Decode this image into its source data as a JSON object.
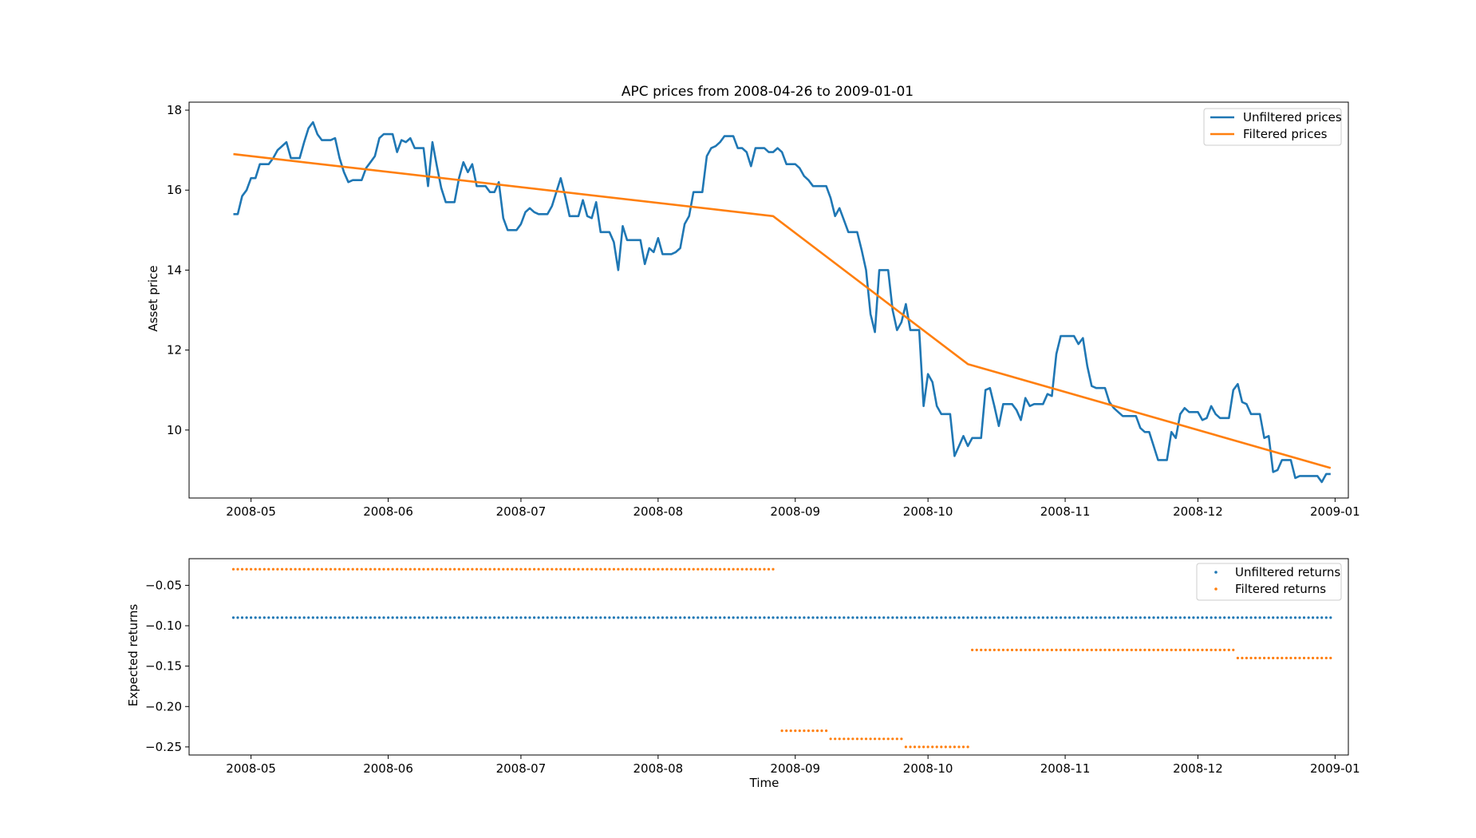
{
  "chart_data": [
    {
      "type": "line",
      "title": "APC prices from 2008-04-26 to 2009-01-01",
      "xlabel": "",
      "ylabel": "Asset price",
      "xlim": [
        "2008-04-17",
        "2009-01-04"
      ],
      "ylim": [
        8.3,
        18.2
      ],
      "yticks": [
        10,
        12,
        14,
        16,
        18
      ],
      "xticks": [
        "2008-05",
        "2008-06",
        "2008-07",
        "2008-08",
        "2008-09",
        "2008-10",
        "2008-11",
        "2008-12",
        "2009-01"
      ],
      "grid": false,
      "legend_position": "upper right",
      "series": [
        {
          "name": "Unfiltered prices",
          "color": "#1f77b4",
          "points": [
            [
              "2008-04-27",
              15.4
            ],
            [
              "2008-04-28",
              15.4
            ],
            [
              "2008-04-29",
              15.85
            ],
            [
              "2008-04-30",
              16.0
            ],
            [
              "2008-05-01",
              16.3
            ],
            [
              "2008-05-02",
              16.3
            ],
            [
              "2008-05-03",
              16.65
            ],
            [
              "2008-05-05",
              16.65
            ],
            [
              "2008-05-06",
              16.8
            ],
            [
              "2008-05-07",
              17.0
            ],
            [
              "2008-05-08",
              17.1
            ],
            [
              "2008-05-09",
              17.2
            ],
            [
              "2008-05-10",
              16.8
            ],
            [
              "2008-05-12",
              16.8
            ],
            [
              "2008-05-13",
              17.2
            ],
            [
              "2008-05-14",
              17.55
            ],
            [
              "2008-05-15",
              17.7
            ],
            [
              "2008-05-16",
              17.4
            ],
            [
              "2008-05-17",
              17.25
            ],
            [
              "2008-05-19",
              17.25
            ],
            [
              "2008-05-20",
              17.3
            ],
            [
              "2008-05-21",
              16.8
            ],
            [
              "2008-05-22",
              16.45
            ],
            [
              "2008-05-23",
              16.2
            ],
            [
              "2008-05-24",
              16.25
            ],
            [
              "2008-05-26",
              16.25
            ],
            [
              "2008-05-27",
              16.55
            ],
            [
              "2008-05-28",
              16.7
            ],
            [
              "2008-05-29",
              16.85
            ],
            [
              "2008-05-30",
              17.3
            ],
            [
              "2008-05-31",
              17.4
            ],
            [
              "2008-06-02",
              17.4
            ],
            [
              "2008-06-03",
              16.95
            ],
            [
              "2008-06-04",
              17.25
            ],
            [
              "2008-06-05",
              17.2
            ],
            [
              "2008-06-06",
              17.3
            ],
            [
              "2008-06-07",
              17.05
            ],
            [
              "2008-06-09",
              17.05
            ],
            [
              "2008-06-10",
              16.1
            ],
            [
              "2008-06-11",
              17.2
            ],
            [
              "2008-06-12",
              16.6
            ],
            [
              "2008-06-13",
              16.05
            ],
            [
              "2008-06-14",
              15.7
            ],
            [
              "2008-06-16",
              15.7
            ],
            [
              "2008-06-17",
              16.3
            ],
            [
              "2008-06-18",
              16.7
            ],
            [
              "2008-06-19",
              16.45
            ],
            [
              "2008-06-20",
              16.65
            ],
            [
              "2008-06-21",
              16.1
            ],
            [
              "2008-06-23",
              16.1
            ],
            [
              "2008-06-24",
              15.95
            ],
            [
              "2008-06-25",
              15.95
            ],
            [
              "2008-06-26",
              16.2
            ],
            [
              "2008-06-27",
              15.3
            ],
            [
              "2008-06-28",
              15.0
            ],
            [
              "2008-06-30",
              15.0
            ],
            [
              "2008-07-01",
              15.15
            ],
            [
              "2008-07-02",
              15.45
            ],
            [
              "2008-07-03",
              15.55
            ],
            [
              "2008-07-04",
              15.45
            ],
            [
              "2008-07-05",
              15.4
            ],
            [
              "2008-07-07",
              15.4
            ],
            [
              "2008-07-08",
              15.6
            ],
            [
              "2008-07-09",
              15.95
            ],
            [
              "2008-07-10",
              16.3
            ],
            [
              "2008-07-11",
              15.85
            ],
            [
              "2008-07-12",
              15.35
            ],
            [
              "2008-07-14",
              15.35
            ],
            [
              "2008-07-15",
              15.75
            ],
            [
              "2008-07-16",
              15.35
            ],
            [
              "2008-07-17",
              15.3
            ],
            [
              "2008-07-18",
              15.7
            ],
            [
              "2008-07-19",
              14.95
            ],
            [
              "2008-07-21",
              14.95
            ],
            [
              "2008-07-22",
              14.7
            ],
            [
              "2008-07-23",
              14.0
            ],
            [
              "2008-07-24",
              15.1
            ],
            [
              "2008-07-25",
              14.75
            ],
            [
              "2008-07-26",
              14.75
            ],
            [
              "2008-07-28",
              14.75
            ],
            [
              "2008-07-29",
              14.15
            ],
            [
              "2008-07-30",
              14.55
            ],
            [
              "2008-07-31",
              14.45
            ],
            [
              "2008-08-01",
              14.8
            ],
            [
              "2008-08-02",
              14.4
            ],
            [
              "2008-08-04",
              14.4
            ],
            [
              "2008-08-05",
              14.45
            ],
            [
              "2008-08-06",
              14.55
            ],
            [
              "2008-08-07",
              15.15
            ],
            [
              "2008-08-08",
              15.35
            ],
            [
              "2008-08-09",
              15.95
            ],
            [
              "2008-08-11",
              15.95
            ],
            [
              "2008-08-12",
              16.85
            ],
            [
              "2008-08-13",
              17.05
            ],
            [
              "2008-08-14",
              17.1
            ],
            [
              "2008-08-15",
              17.2
            ],
            [
              "2008-08-16",
              17.35
            ],
            [
              "2008-08-18",
              17.35
            ],
            [
              "2008-08-19",
              17.05
            ],
            [
              "2008-08-20",
              17.05
            ],
            [
              "2008-08-21",
              16.95
            ],
            [
              "2008-08-22",
              16.6
            ],
            [
              "2008-08-23",
              17.05
            ],
            [
              "2008-08-25",
              17.05
            ],
            [
              "2008-08-26",
              16.95
            ],
            [
              "2008-08-27",
              16.95
            ],
            [
              "2008-08-28",
              17.05
            ],
            [
              "2008-08-29",
              16.95
            ],
            [
              "2008-08-30",
              16.65
            ],
            [
              "2008-09-01",
              16.65
            ],
            [
              "2008-09-02",
              16.55
            ],
            [
              "2008-09-03",
              16.35
            ],
            [
              "2008-09-04",
              16.25
            ],
            [
              "2008-09-05",
              16.1
            ],
            [
              "2008-09-06",
              16.1
            ],
            [
              "2008-09-08",
              16.1
            ],
            [
              "2008-09-09",
              15.8
            ],
            [
              "2008-09-10",
              15.35
            ],
            [
              "2008-09-11",
              15.55
            ],
            [
              "2008-09-12",
              15.25
            ],
            [
              "2008-09-13",
              14.95
            ],
            [
              "2008-09-15",
              14.95
            ],
            [
              "2008-09-16",
              14.5
            ],
            [
              "2008-09-17",
              14.0
            ],
            [
              "2008-09-18",
              12.9
            ],
            [
              "2008-09-19",
              12.45
            ],
            [
              "2008-09-20",
              14.0
            ],
            [
              "2008-09-22",
              14.0
            ],
            [
              "2008-09-23",
              13.0
            ],
            [
              "2008-09-24",
              12.5
            ],
            [
              "2008-09-25",
              12.7
            ],
            [
              "2008-09-26",
              13.15
            ],
            [
              "2008-09-27",
              12.5
            ],
            [
              "2008-09-29",
              12.5
            ],
            [
              "2008-09-30",
              10.6
            ],
            [
              "2008-10-01",
              11.4
            ],
            [
              "2008-10-02",
              11.2
            ],
            [
              "2008-10-03",
              10.6
            ],
            [
              "2008-10-04",
              10.4
            ],
            [
              "2008-10-06",
              10.4
            ],
            [
              "2008-10-07",
              9.35
            ],
            [
              "2008-10-08",
              9.6
            ],
            [
              "2008-10-09",
              9.85
            ],
            [
              "2008-10-10",
              9.6
            ],
            [
              "2008-10-11",
              9.8
            ],
            [
              "2008-10-13",
              9.8
            ],
            [
              "2008-10-14",
              11.0
            ],
            [
              "2008-10-15",
              11.05
            ],
            [
              "2008-10-16",
              10.6
            ],
            [
              "2008-10-17",
              10.1
            ],
            [
              "2008-10-18",
              10.65
            ],
            [
              "2008-10-20",
              10.65
            ],
            [
              "2008-10-21",
              10.5
            ],
            [
              "2008-10-22",
              10.25
            ],
            [
              "2008-10-23",
              10.8
            ],
            [
              "2008-10-24",
              10.6
            ],
            [
              "2008-10-25",
              10.65
            ],
            [
              "2008-10-27",
              10.65
            ],
            [
              "2008-10-28",
              10.9
            ],
            [
              "2008-10-29",
              10.85
            ],
            [
              "2008-10-30",
              11.9
            ],
            [
              "2008-10-31",
              12.35
            ],
            [
              "2008-11-01",
              12.35
            ],
            [
              "2008-11-03",
              12.35
            ],
            [
              "2008-11-04",
              12.15
            ],
            [
              "2008-11-05",
              12.3
            ],
            [
              "2008-11-06",
              11.6
            ],
            [
              "2008-11-07",
              11.1
            ],
            [
              "2008-11-08",
              11.05
            ],
            [
              "2008-11-10",
              11.05
            ],
            [
              "2008-11-11",
              10.7
            ],
            [
              "2008-11-12",
              10.55
            ],
            [
              "2008-11-13",
              10.45
            ],
            [
              "2008-11-14",
              10.35
            ],
            [
              "2008-11-15",
              10.35
            ],
            [
              "2008-11-17",
              10.35
            ],
            [
              "2008-11-18",
              10.05
            ],
            [
              "2008-11-19",
              9.95
            ],
            [
              "2008-11-20",
              9.95
            ],
            [
              "2008-11-21",
              9.6
            ],
            [
              "2008-11-22",
              9.25
            ],
            [
              "2008-11-24",
              9.25
            ],
            [
              "2008-11-25",
              9.95
            ],
            [
              "2008-11-26",
              9.8
            ],
            [
              "2008-11-27",
              10.4
            ],
            [
              "2008-11-28",
              10.55
            ],
            [
              "2008-11-29",
              10.45
            ],
            [
              "2008-12-01",
              10.45
            ],
            [
              "2008-12-02",
              10.25
            ],
            [
              "2008-12-03",
              10.3
            ],
            [
              "2008-12-04",
              10.6
            ],
            [
              "2008-12-05",
              10.4
            ],
            [
              "2008-12-06",
              10.3
            ],
            [
              "2008-12-08",
              10.3
            ],
            [
              "2008-12-09",
              11.0
            ],
            [
              "2008-12-10",
              11.15
            ],
            [
              "2008-12-11",
              10.7
            ],
            [
              "2008-12-12",
              10.65
            ],
            [
              "2008-12-13",
              10.4
            ],
            [
              "2008-12-15",
              10.4
            ],
            [
              "2008-12-16",
              9.8
            ],
            [
              "2008-12-17",
              9.85
            ],
            [
              "2008-12-18",
              8.95
            ],
            [
              "2008-12-19",
              9.0
            ],
            [
              "2008-12-20",
              9.25
            ],
            [
              "2008-12-22",
              9.25
            ],
            [
              "2008-12-23",
              8.8
            ],
            [
              "2008-12-24",
              8.85
            ],
            [
              "2008-12-25",
              8.85
            ],
            [
              "2008-12-27",
              8.85
            ],
            [
              "2008-12-28",
              8.85
            ],
            [
              "2008-12-29",
              8.7
            ],
            [
              "2008-12-30",
              8.9
            ],
            [
              "2008-12-31",
              8.9
            ]
          ]
        },
        {
          "name": "Filtered prices",
          "color": "#ff7f0e",
          "points": [
            [
              "2008-04-27",
              16.9
            ],
            [
              "2008-08-27",
              15.35
            ],
            [
              "2008-10-10",
              11.65
            ],
            [
              "2008-12-31",
              9.05
            ]
          ]
        }
      ]
    },
    {
      "type": "scatter",
      "title": "",
      "xlabel": "Time",
      "ylabel": "Expected returns",
      "xlim": [
        "2008-04-17",
        "2009-01-04"
      ],
      "ylim": [
        -0.26,
        -0.017
      ],
      "yticks": [
        -0.05,
        -0.1,
        -0.15,
        -0.2,
        -0.25
      ],
      "ytick_labels": [
        "−0.05",
        "−0.10",
        "−0.15",
        "−0.20",
        "−0.25"
      ],
      "xticks": [
        "2008-05",
        "2008-06",
        "2008-07",
        "2008-08",
        "2008-09",
        "2008-10",
        "2008-11",
        "2008-12",
        "2009-01"
      ],
      "grid": false,
      "legend_position": "upper right",
      "series": [
        {
          "name": "Unfiltered returns",
          "color": "#1f77b4",
          "segments": [
            {
              "start": "2008-04-27",
              "end": "2008-12-31",
              "value": -0.09
            }
          ]
        },
        {
          "name": "Filtered returns",
          "color": "#ff7f0e",
          "segments": [
            {
              "start": "2008-04-27",
              "end": "2008-08-27",
              "value": -0.03
            },
            {
              "start": "2008-08-29",
              "end": "2008-09-08",
              "value": -0.23
            },
            {
              "start": "2008-09-09",
              "end": "2008-09-25",
              "value": -0.24
            },
            {
              "start": "2008-09-26",
              "end": "2008-10-10",
              "value": -0.25
            },
            {
              "start": "2008-10-11",
              "end": "2008-12-09",
              "value": -0.13
            },
            {
              "start": "2008-12-10",
              "end": "2008-12-31",
              "value": -0.14
            }
          ]
        }
      ]
    }
  ]
}
